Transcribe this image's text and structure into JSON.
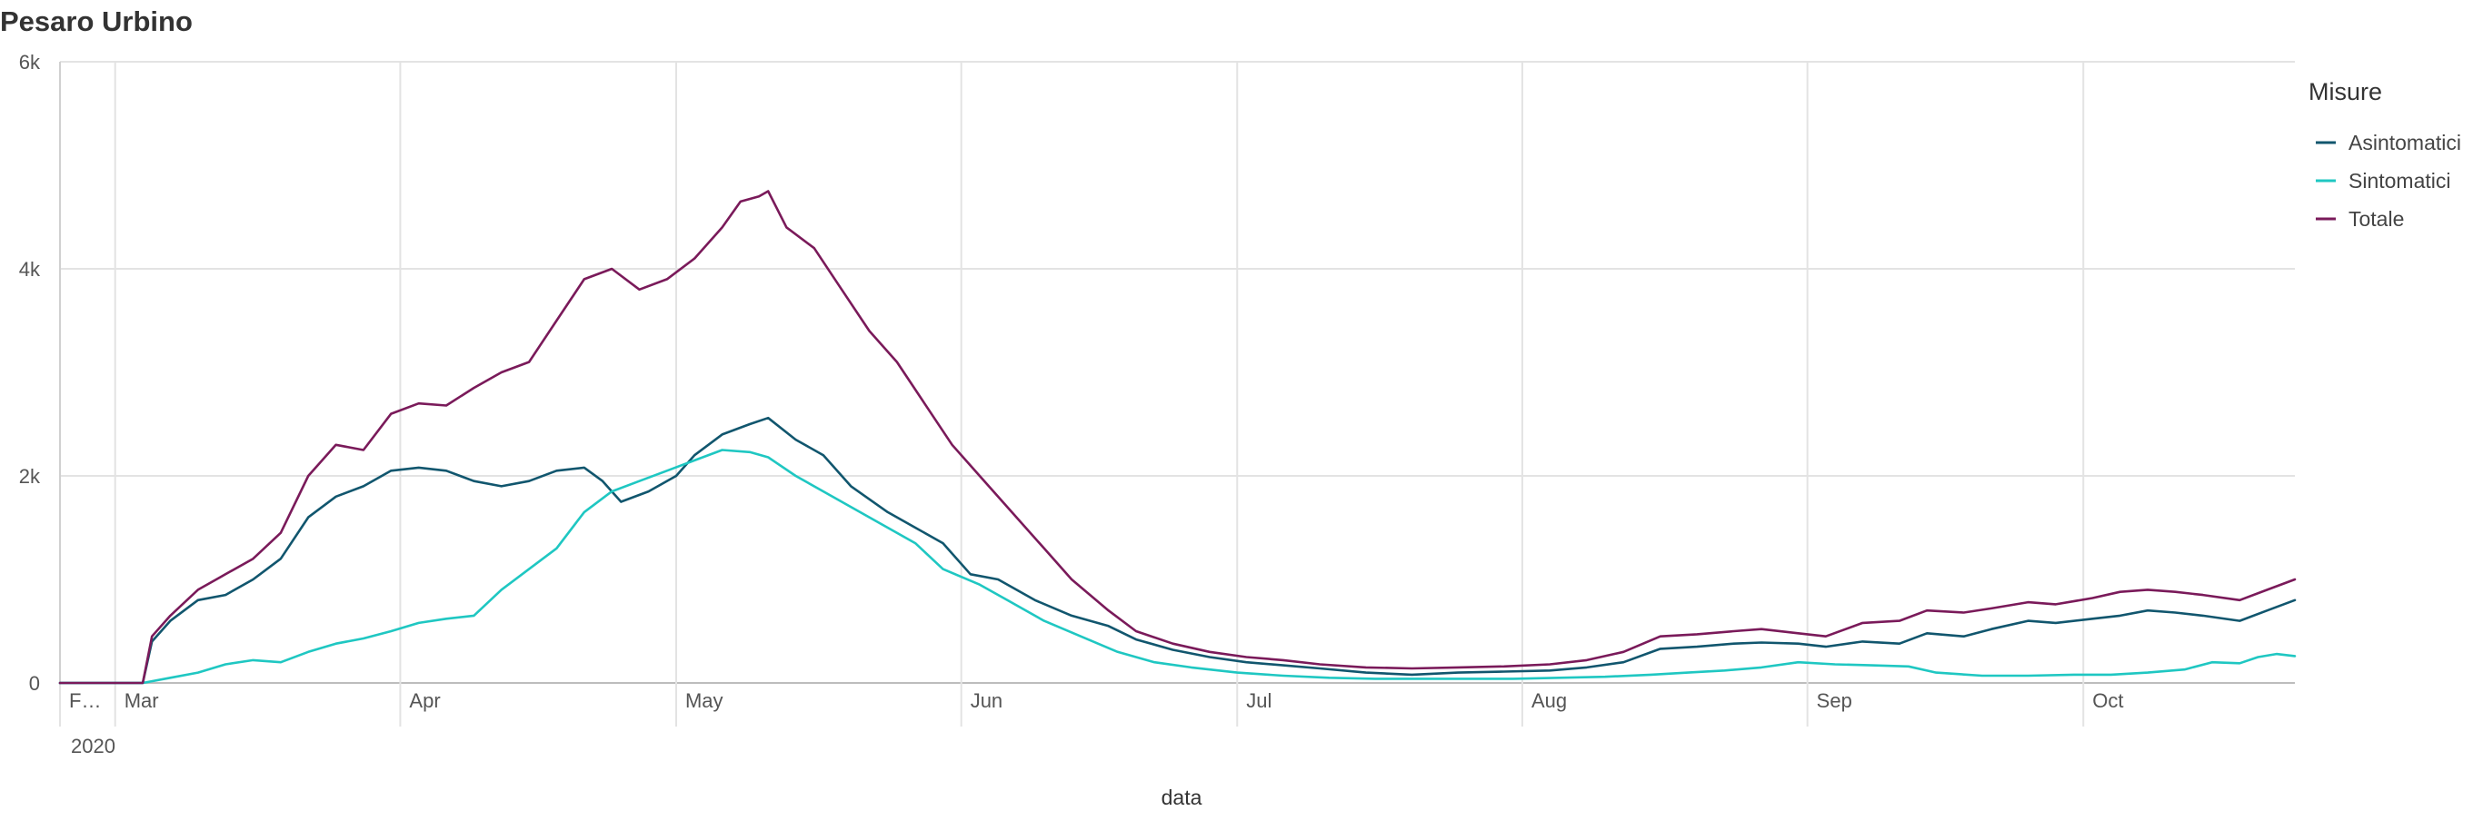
{
  "chart_data": {
    "type": "line",
    "title": "Pesaro Urbino",
    "xlabel": "data",
    "ylabel": "",
    "x_start": "2020-02-24",
    "x_end": "2020-10-24",
    "ylim": [
      0,
      6000
    ],
    "y_ticks": [
      {
        "value": 0,
        "label": "0"
      },
      {
        "value": 2000,
        "label": "2k"
      },
      {
        "value": 4000,
        "label": "4k"
      },
      {
        "value": 6000,
        "label": "6k"
      }
    ],
    "x_ticks": [
      {
        "date": "2020-02-24",
        "label": "F…"
      },
      {
        "date": "2020-03-01",
        "label": "Mar"
      },
      {
        "date": "2020-04-01",
        "label": "Apr"
      },
      {
        "date": "2020-05-01",
        "label": "May"
      },
      {
        "date": "2020-06-01",
        "label": "Jun"
      },
      {
        "date": "2020-07-01",
        "label": "Jul"
      },
      {
        "date": "2020-08-01",
        "label": "Aug"
      },
      {
        "date": "2020-09-01",
        "label": "Sep"
      },
      {
        "date": "2020-10-01",
        "label": "Oct"
      }
    ],
    "year_label": "2020",
    "grid": true,
    "legend": {
      "title": "Misure",
      "position": "right"
    },
    "series": [
      {
        "name": "Asintomatici",
        "color": "#11566e",
        "points": [
          [
            "2020-02-24",
            0
          ],
          [
            "2020-03-04",
            0
          ],
          [
            "2020-03-05",
            400
          ],
          [
            "2020-03-07",
            600
          ],
          [
            "2020-03-10",
            800
          ],
          [
            "2020-03-13",
            850
          ],
          [
            "2020-03-16",
            1000
          ],
          [
            "2020-03-19",
            1200
          ],
          [
            "2020-03-22",
            1600
          ],
          [
            "2020-03-25",
            1800
          ],
          [
            "2020-03-28",
            1900
          ],
          [
            "2020-03-31",
            2050
          ],
          [
            "2020-04-03",
            2080
          ],
          [
            "2020-04-06",
            2050
          ],
          [
            "2020-04-09",
            1950
          ],
          [
            "2020-04-12",
            1900
          ],
          [
            "2020-04-15",
            1950
          ],
          [
            "2020-04-18",
            2050
          ],
          [
            "2020-04-21",
            2080
          ],
          [
            "2020-04-23",
            1950
          ],
          [
            "2020-04-25",
            1750
          ],
          [
            "2020-04-28",
            1850
          ],
          [
            "2020-05-01",
            2000
          ],
          [
            "2020-05-03",
            2200
          ],
          [
            "2020-05-06",
            2400
          ],
          [
            "2020-05-09",
            2500
          ],
          [
            "2020-05-11",
            2560
          ],
          [
            "2020-05-14",
            2350
          ],
          [
            "2020-05-17",
            2200
          ],
          [
            "2020-05-20",
            1900
          ],
          [
            "2020-05-24",
            1650
          ],
          [
            "2020-05-27",
            1500
          ],
          [
            "2020-05-30",
            1350
          ],
          [
            "2020-06-02",
            1050
          ],
          [
            "2020-06-05",
            1000
          ],
          [
            "2020-06-09",
            800
          ],
          [
            "2020-06-13",
            650
          ],
          [
            "2020-06-17",
            550
          ],
          [
            "2020-06-20",
            420
          ],
          [
            "2020-06-24",
            320
          ],
          [
            "2020-06-28",
            250
          ],
          [
            "2020-07-02",
            200
          ],
          [
            "2020-07-06",
            170
          ],
          [
            "2020-07-10",
            140
          ],
          [
            "2020-07-15",
            100
          ],
          [
            "2020-07-20",
            80
          ],
          [
            "2020-07-25",
            100
          ],
          [
            "2020-07-30",
            110
          ],
          [
            "2020-08-04",
            120
          ],
          [
            "2020-08-08",
            150
          ],
          [
            "2020-08-12",
            200
          ],
          [
            "2020-08-16",
            330
          ],
          [
            "2020-08-20",
            350
          ],
          [
            "2020-08-24",
            380
          ],
          [
            "2020-08-27",
            390
          ],
          [
            "2020-08-31",
            380
          ],
          [
            "2020-09-03",
            350
          ],
          [
            "2020-09-07",
            400
          ],
          [
            "2020-09-11",
            380
          ],
          [
            "2020-09-14",
            480
          ],
          [
            "2020-09-18",
            450
          ],
          [
            "2020-09-21",
            520
          ],
          [
            "2020-09-25",
            600
          ],
          [
            "2020-09-28",
            580
          ],
          [
            "2020-10-02",
            620
          ],
          [
            "2020-10-05",
            650
          ],
          [
            "2020-10-08",
            700
          ],
          [
            "2020-10-11",
            680
          ],
          [
            "2020-10-14",
            650
          ],
          [
            "2020-10-18",
            600
          ],
          [
            "2020-10-21",
            700
          ],
          [
            "2020-10-24",
            800
          ]
        ]
      },
      {
        "name": "Sintomatici",
        "color": "#1fc7c2",
        "points": [
          [
            "2020-02-24",
            0
          ],
          [
            "2020-03-04",
            0
          ],
          [
            "2020-03-07",
            50
          ],
          [
            "2020-03-10",
            100
          ],
          [
            "2020-03-13",
            180
          ],
          [
            "2020-03-16",
            220
          ],
          [
            "2020-03-19",
            200
          ],
          [
            "2020-03-22",
            300
          ],
          [
            "2020-03-25",
            380
          ],
          [
            "2020-03-28",
            430
          ],
          [
            "2020-03-31",
            500
          ],
          [
            "2020-04-03",
            580
          ],
          [
            "2020-04-06",
            620
          ],
          [
            "2020-04-09",
            650
          ],
          [
            "2020-04-12",
            900
          ],
          [
            "2020-04-15",
            1100
          ],
          [
            "2020-04-18",
            1300
          ],
          [
            "2020-04-21",
            1650
          ],
          [
            "2020-04-24",
            1850
          ],
          [
            "2020-04-27",
            1950
          ],
          [
            "2020-04-30",
            2050
          ],
          [
            "2020-05-03",
            2150
          ],
          [
            "2020-05-06",
            2250
          ],
          [
            "2020-05-09",
            2230
          ],
          [
            "2020-05-11",
            2180
          ],
          [
            "2020-05-14",
            2000
          ],
          [
            "2020-05-17",
            1850
          ],
          [
            "2020-05-20",
            1700
          ],
          [
            "2020-05-24",
            1500
          ],
          [
            "2020-05-27",
            1350
          ],
          [
            "2020-05-30",
            1100
          ],
          [
            "2020-06-03",
            950
          ],
          [
            "2020-06-06",
            800
          ],
          [
            "2020-06-10",
            600
          ],
          [
            "2020-06-14",
            450
          ],
          [
            "2020-06-18",
            300
          ],
          [
            "2020-06-22",
            200
          ],
          [
            "2020-06-26",
            150
          ],
          [
            "2020-07-01",
            100
          ],
          [
            "2020-07-06",
            70
          ],
          [
            "2020-07-11",
            50
          ],
          [
            "2020-07-16",
            40
          ],
          [
            "2020-07-21",
            40
          ],
          [
            "2020-07-26",
            40
          ],
          [
            "2020-07-31",
            40
          ],
          [
            "2020-08-05",
            50
          ],
          [
            "2020-08-10",
            60
          ],
          [
            "2020-08-15",
            80
          ],
          [
            "2020-08-19",
            100
          ],
          [
            "2020-08-23",
            120
          ],
          [
            "2020-08-27",
            150
          ],
          [
            "2020-08-31",
            200
          ],
          [
            "2020-09-04",
            180
          ],
          [
            "2020-09-08",
            170
          ],
          [
            "2020-09-12",
            160
          ],
          [
            "2020-09-15",
            100
          ],
          [
            "2020-09-20",
            70
          ],
          [
            "2020-09-25",
            70
          ],
          [
            "2020-09-30",
            80
          ],
          [
            "2020-10-04",
            80
          ],
          [
            "2020-10-08",
            100
          ],
          [
            "2020-10-12",
            130
          ],
          [
            "2020-10-15",
            200
          ],
          [
            "2020-10-18",
            190
          ],
          [
            "2020-10-20",
            250
          ],
          [
            "2020-10-22",
            280
          ],
          [
            "2020-10-24",
            260
          ]
        ]
      },
      {
        "name": "Totale",
        "color": "#7a1a5a",
        "points": [
          [
            "2020-02-24",
            0
          ],
          [
            "2020-03-04",
            0
          ],
          [
            "2020-03-05",
            450
          ],
          [
            "2020-03-07",
            650
          ],
          [
            "2020-03-10",
            900
          ],
          [
            "2020-03-13",
            1050
          ],
          [
            "2020-03-16",
            1200
          ],
          [
            "2020-03-19",
            1450
          ],
          [
            "2020-03-22",
            2000
          ],
          [
            "2020-03-25",
            2300
          ],
          [
            "2020-03-28",
            2250
          ],
          [
            "2020-03-31",
            2600
          ],
          [
            "2020-04-03",
            2700
          ],
          [
            "2020-04-06",
            2680
          ],
          [
            "2020-04-09",
            2850
          ],
          [
            "2020-04-12",
            3000
          ],
          [
            "2020-04-15",
            3100
          ],
          [
            "2020-04-18",
            3500
          ],
          [
            "2020-04-21",
            3900
          ],
          [
            "2020-04-24",
            4000
          ],
          [
            "2020-04-27",
            3800
          ],
          [
            "2020-04-30",
            3900
          ],
          [
            "2020-05-03",
            4100
          ],
          [
            "2020-05-06",
            4400
          ],
          [
            "2020-05-08",
            4650
          ],
          [
            "2020-05-10",
            4700
          ],
          [
            "2020-05-11",
            4750
          ],
          [
            "2020-05-13",
            4400
          ],
          [
            "2020-05-16",
            4200
          ],
          [
            "2020-05-19",
            3800
          ],
          [
            "2020-05-22",
            3400
          ],
          [
            "2020-05-25",
            3100
          ],
          [
            "2020-05-28",
            2700
          ],
          [
            "2020-05-31",
            2300
          ],
          [
            "2020-06-03",
            2000
          ],
          [
            "2020-06-06",
            1700
          ],
          [
            "2020-06-10",
            1300
          ],
          [
            "2020-06-13",
            1000
          ],
          [
            "2020-06-17",
            700
          ],
          [
            "2020-06-20",
            500
          ],
          [
            "2020-06-24",
            380
          ],
          [
            "2020-06-28",
            300
          ],
          [
            "2020-07-02",
            250
          ],
          [
            "2020-07-06",
            220
          ],
          [
            "2020-07-10",
            180
          ],
          [
            "2020-07-15",
            150
          ],
          [
            "2020-07-20",
            140
          ],
          [
            "2020-07-25",
            150
          ],
          [
            "2020-07-30",
            160
          ],
          [
            "2020-08-04",
            180
          ],
          [
            "2020-08-08",
            220
          ],
          [
            "2020-08-12",
            300
          ],
          [
            "2020-08-16",
            450
          ],
          [
            "2020-08-20",
            470
          ],
          [
            "2020-08-24",
            500
          ],
          [
            "2020-08-27",
            520
          ],
          [
            "2020-08-31",
            480
          ],
          [
            "2020-09-03",
            450
          ],
          [
            "2020-09-07",
            580
          ],
          [
            "2020-09-11",
            600
          ],
          [
            "2020-09-14",
            700
          ],
          [
            "2020-09-18",
            680
          ],
          [
            "2020-09-21",
            720
          ],
          [
            "2020-09-25",
            780
          ],
          [
            "2020-09-28",
            760
          ],
          [
            "2020-10-02",
            820
          ],
          [
            "2020-10-05",
            880
          ],
          [
            "2020-10-08",
            900
          ],
          [
            "2020-10-11",
            880
          ],
          [
            "2020-10-14",
            850
          ],
          [
            "2020-10-18",
            800
          ],
          [
            "2020-10-21",
            900
          ],
          [
            "2020-10-24",
            1000
          ]
        ]
      }
    ]
  }
}
